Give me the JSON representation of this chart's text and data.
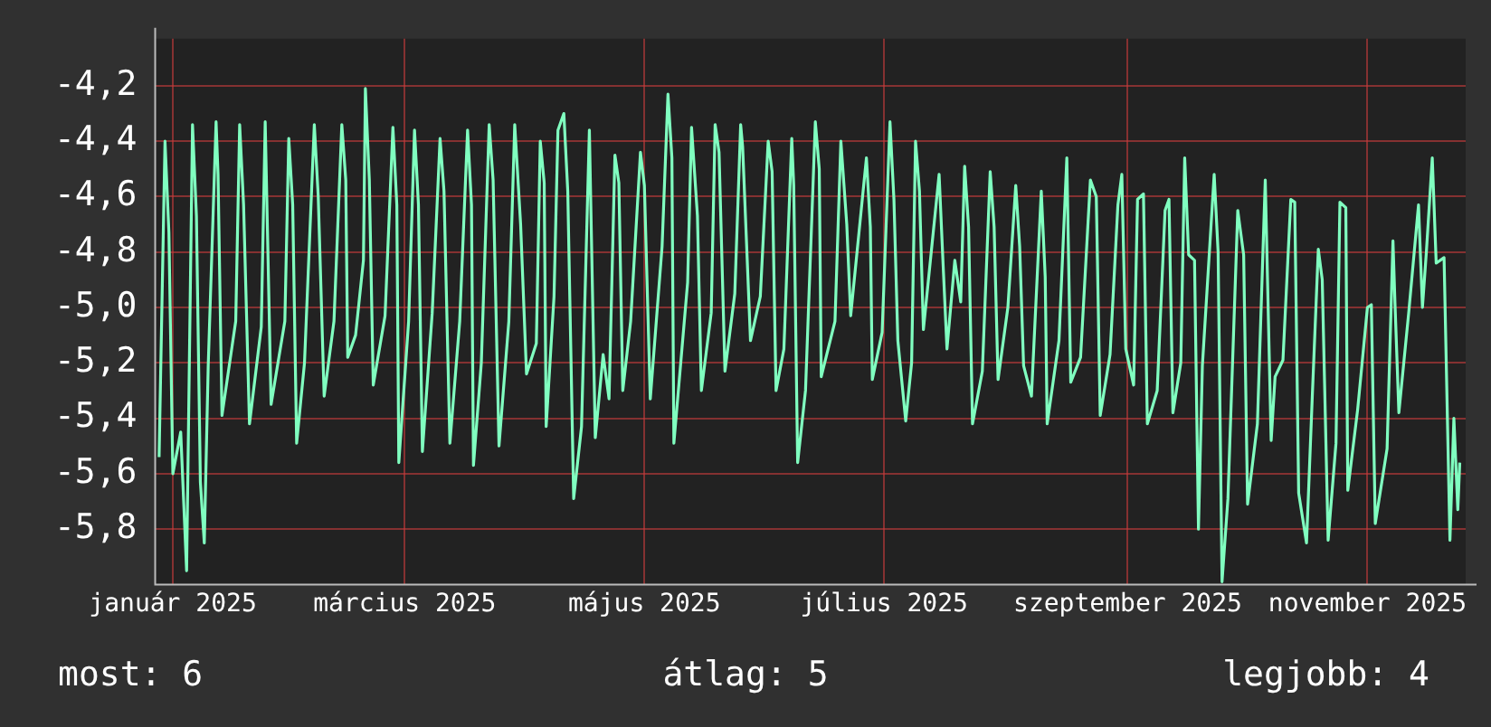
{
  "chart_data": {
    "type": "line",
    "grid": true,
    "legend": false,
    "marker": "none",
    "line_style": "solid",
    "xlim": [
      "2025-01-10T12:00",
      "2025-12-10"
    ],
    "xticks": [
      {
        "value": "2025-01-15",
        "label": "január 2025"
      },
      {
        "value": "2025-03-15",
        "label": "március 2025"
      },
      {
        "value": "2025-05-15",
        "label": "május 2025"
      },
      {
        "value": "2025-07-15",
        "label": "július 2025"
      },
      {
        "value": "2025-09-15",
        "label": "szeptember 2025"
      },
      {
        "value": "2025-11-15",
        "label": "november 2025"
      }
    ],
    "ylim": [
      -6.0,
      -4.03
    ],
    "yticks": [
      {
        "value": -4.2,
        "label": "-4,2"
      },
      {
        "value": -4.4,
        "label": "-4,4"
      },
      {
        "value": -4.6,
        "label": "-4,6"
      },
      {
        "value": -4.8,
        "label": "-4,8"
      },
      {
        "value": -5.0,
        "label": "-5,0"
      },
      {
        "value": -5.2,
        "label": "-5,2"
      },
      {
        "value": -5.4,
        "label": "-5,4"
      },
      {
        "value": -5.6,
        "label": "-5,6"
      },
      {
        "value": -5.8,
        "label": "-5,8"
      }
    ],
    "annotations": [
      "most: 6",
      "átlag: 5",
      "legjobb: 4"
    ],
    "series": [
      {
        "color": "#80ffc0",
        "x": [
          "2025-01-11T12:00",
          "2025-01-13",
          "2025-01-14",
          "2025-01-15",
          "2025-01-17",
          "2025-01-18T12:00",
          "2025-01-20",
          "2025-01-21",
          "2025-01-22",
          "2025-01-23",
          "2025-01-24",
          "2025-01-26",
          "2025-01-26T12:00",
          "2025-01-27T12:00",
          "2025-01-31",
          "2025-02-01",
          "2025-02-02",
          "2025-02-03T12:00",
          "2025-02-06T12:00",
          "2025-02-07T12:00",
          "2025-02-09",
          "2025-02-12T12:00",
          "2025-02-13T12:00",
          "2025-02-14T12:00",
          "2025-02-15T12:00",
          "2025-02-17T12:00",
          "2025-02-20",
          "2025-02-21",
          "2025-02-22T12:00",
          "2025-02-25",
          "2025-02-27",
          "2025-02-28",
          "2025-02-28T12:00",
          "2025-03-02T12:00",
          "2025-03-04T12:00",
          "2025-03-05",
          "2025-03-06",
          "2025-03-07",
          "2025-03-10",
          "2025-03-12",
          "2025-03-13",
          "2025-03-13T12:00",
          "2025-03-16",
          "2025-03-17T12:00",
          "2025-03-18T12:00",
          "2025-03-19T12:00",
          "2025-03-22",
          "2025-03-24",
          "2025-03-25",
          "2025-03-26T12:00",
          "2025-03-29",
          "2025-03-31",
          "2025-04-01",
          "2025-04-01T12:00",
          "2025-04-03T12:00",
          "2025-04-05T12:00",
          "2025-04-06T12:00",
          "2025-04-08",
          "2025-04-10T12:00",
          "2025-04-12",
          "2025-04-13T12:00",
          "2025-04-15",
          "2025-04-17T12:00",
          "2025-04-18T12:00",
          "2025-04-19T12:00",
          "2025-04-20",
          "2025-04-22",
          "2025-04-23",
          "2025-04-24T12:00",
          "2025-04-25T12:00",
          "2025-04-27",
          "2025-04-29",
          "2025-05-01",
          "2025-05-02T12:00",
          "2025-05-04T12:00",
          "2025-05-06",
          "2025-05-07T12:00",
          "2025-05-08T12:00",
          "2025-05-09T12:00",
          "2025-05-11T12:00",
          "2025-05-14",
          "2025-05-15",
          "2025-05-16T12:00",
          "2025-05-19T12:00",
          "2025-05-21",
          "2025-05-22",
          "2025-05-22T12:00",
          "2025-05-26",
          "2025-05-27",
          "2025-05-28T12:00",
          "2025-05-29T12:00",
          "2025-06-01",
          "2025-06-02",
          "2025-06-03",
          "2025-06-04T12:00",
          "2025-06-07",
          "2025-06-08T12:00",
          "2025-06-09",
          "2025-06-11",
          "2025-06-13T12:00",
          "2025-06-15T12:00",
          "2025-06-16T12:00",
          "2025-06-17T12:00",
          "2025-06-19T12:00",
          "2025-06-21T12:00",
          "2025-06-22",
          "2025-06-23",
          "2025-06-25",
          "2025-06-27T12:00",
          "2025-06-28T12:00",
          "2025-06-29",
          "2025-07-02T12:00",
          "2025-07-04",
          "2025-07-05T12:00",
          "2025-07-06T12:00",
          "2025-07-10T12:00",
          "2025-07-11T12:00",
          "2025-07-12",
          "2025-07-14T12:00",
          "2025-07-16T12:00",
          "2025-07-17T12:00",
          "2025-07-18T12:00",
          "2025-07-20T12:00",
          "2025-07-22",
          "2025-07-23",
          "2025-07-24",
          "2025-07-25",
          "2025-07-29",
          "2025-07-30",
          "2025-07-31",
          "2025-08-02",
          "2025-08-03T12:00",
          "2025-08-04T12:00",
          "2025-08-05T12:00",
          "2025-08-06T12:00",
          "2025-08-09",
          "2025-08-11",
          "2025-08-12",
          "2025-08-13",
          "2025-08-15T12:00",
          "2025-08-17T12:00",
          "2025-08-18T12:00",
          "2025-08-19T12:00",
          "2025-08-21T12:00",
          "2025-08-24",
          "2025-08-25",
          "2025-08-25T12:00",
          "2025-08-28T12:00",
          "2025-08-30T12:00",
          "2025-08-31T12:00",
          "2025-09-03",
          "2025-09-05T12:00",
          "2025-09-07",
          "2025-09-08",
          "2025-09-10T12:00",
          "2025-09-12T12:00",
          "2025-09-13T12:00",
          "2025-09-14T12:00",
          "2025-09-16T12:00",
          "2025-09-17T12:00",
          "2025-09-19",
          "2025-09-20",
          "2025-09-22T12:00",
          "2025-09-24T12:00",
          "2025-09-25T12:00",
          "2025-09-26T12:00",
          "2025-09-28T12:00",
          "2025-09-29T12:00",
          "2025-09-30T12:00",
          "2025-10-02",
          "2025-10-03",
          "2025-10-04",
          "2025-10-07",
          "2025-10-08",
          "2025-10-09",
          "2025-10-10T12:00",
          "2025-10-13",
          "2025-10-14T12:00",
          "2025-10-15T12:00",
          "2025-10-18",
          "2025-10-20",
          "2025-10-21T12:00",
          "2025-10-22T12:00",
          "2025-10-24T12:00",
          "2025-10-26T12:00",
          "2025-10-27T12:00",
          "2025-10-28T12:00",
          "2025-10-30T12:00",
          "2025-11-01",
          "2025-11-02T12:00",
          "2025-11-03T12:00",
          "2025-11-05",
          "2025-11-07",
          "2025-11-08",
          "2025-11-09T12:00",
          "2025-11-10",
          "2025-11-12T12:00",
          "2025-11-15",
          "2025-11-16",
          "2025-11-17",
          "2025-11-20",
          "2025-11-21T12:00",
          "2025-11-22",
          "2025-11-23",
          "2025-11-25T12:00",
          "2025-11-28",
          "2025-11-29",
          "2025-11-30",
          "2025-12-01T12:00",
          "2025-12-02T12:00",
          "2025-12-04T12:00",
          "2025-12-06",
          "2025-12-07",
          "2025-12-08",
          "2025-12-08T12:00"
        ],
        "values": [
          -5.54,
          -4.4,
          -4.73,
          -5.6,
          -5.45,
          -5.95,
          -4.34,
          -4.67,
          -5.63,
          -5.85,
          -5.21,
          -4.33,
          -4.52,
          -5.39,
          -5.05,
          -4.34,
          -4.63,
          -5.42,
          -5.07,
          -4.33,
          -5.35,
          -5.05,
          -4.39,
          -4.63,
          -5.49,
          -5.2,
          -4.34,
          -4.6,
          -5.32,
          -5.05,
          -4.34,
          -4.54,
          -5.18,
          -5.1,
          -4.83,
          -4.21,
          -4.54,
          -5.28,
          -5.03,
          -4.35,
          -4.63,
          -5.56,
          -5.05,
          -4.36,
          -4.63,
          -5.52,
          -5.02,
          -4.39,
          -4.58,
          -5.49,
          -5.05,
          -4.36,
          -4.63,
          -5.57,
          -5.2,
          -4.34,
          -4.54,
          -5.5,
          -5.05,
          -4.34,
          -4.7,
          -5.24,
          -5.13,
          -4.4,
          -4.55,
          -5.43,
          -4.96,
          -4.36,
          -4.3,
          -4.58,
          -5.69,
          -5.43,
          -4.36,
          -5.47,
          -5.17,
          -5.33,
          -4.45,
          -4.55,
          -5.3,
          -5.05,
          -4.44,
          -4.56,
          -5.33,
          -4.78,
          -4.23,
          -4.46,
          -5.49,
          -4.91,
          -4.35,
          -4.67,
          -5.3,
          -5.02,
          -4.34,
          -4.44,
          -5.23,
          -4.95,
          -4.34,
          -4.42,
          -5.12,
          -4.96,
          -4.4,
          -4.51,
          -5.3,
          -5.15,
          -4.39,
          -4.56,
          -5.56,
          -5.3,
          -4.33,
          -4.5,
          -5.25,
          -5.05,
          -4.4,
          -4.7,
          -5.03,
          -4.46,
          -4.71,
          -5.26,
          -5.09,
          -4.33,
          -4.61,
          -5.12,
          -5.41,
          -5.2,
          -4.4,
          -4.58,
          -5.08,
          -4.52,
          -4.84,
          -5.15,
          -4.83,
          -4.98,
          -4.49,
          -4.71,
          -5.42,
          -5.23,
          -4.51,
          -4.71,
          -5.26,
          -5.0,
          -4.56,
          -4.78,
          -5.21,
          -5.32,
          -4.58,
          -4.89,
          -5.42,
          -5.12,
          -4.46,
          -5.27,
          -5.18,
          -4.54,
          -4.6,
          -5.39,
          -5.17,
          -4.63,
          -4.52,
          -5.15,
          -5.28,
          -4.61,
          -4.59,
          -5.42,
          -5.3,
          -4.65,
          -4.61,
          -5.38,
          -5.2,
          -4.46,
          -4.81,
          -4.83,
          -5.8,
          -5.21,
          -4.52,
          -4.8,
          -5.99,
          -5.69,
          -4.65,
          -4.81,
          -5.71,
          -5.42,
          -4.54,
          -5.48,
          -5.25,
          -5.19,
          -4.61,
          -4.62,
          -5.67,
          -5.85,
          -5.31,
          -4.79,
          -4.9,
          -5.84,
          -5.49,
          -4.62,
          -4.64,
          -5.66,
          -5.37,
          -5.0,
          -4.99,
          -5.78,
          -5.51,
          -4.76,
          -4.98,
          -5.38,
          -5.02,
          -4.63,
          -5.0,
          -4.8,
          -4.46,
          -4.84,
          -4.82,
          -5.84,
          -5.4,
          -5.73,
          -5.56
        ]
      }
    ]
  }
}
